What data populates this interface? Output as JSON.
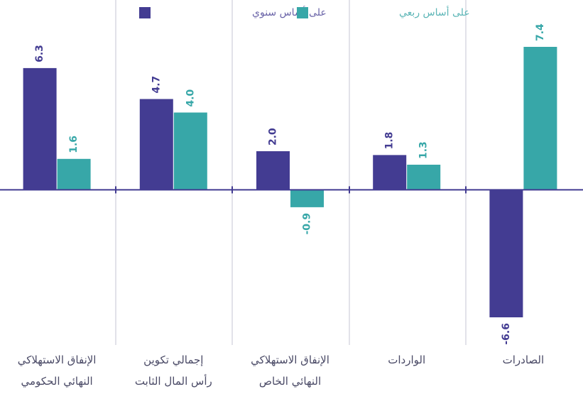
{
  "chart_data": {
    "type": "bar",
    "categories": [
      [
        "الإنفاق الاستهلاكي",
        "النهائي الحكومي"
      ],
      [
        "إجمالي تكوين",
        "رأس المال الثابت"
      ],
      [
        "الإنفاق الاستهلاكي",
        "النهائي الخاص"
      ],
      [
        "الواردات"
      ],
      [
        "الصادرات"
      ]
    ],
    "series": [
      {
        "name": "على أساس سنوي",
        "color": "#433c92",
        "values": [
          6.3,
          4.7,
          2.0,
          1.8,
          -6.6
        ],
        "labels": [
          "6.3",
          "4.7",
          "2.0",
          "1.8",
          "-6.6"
        ]
      },
      {
        "name": "على أساس ربعي",
        "color": "#37a7a8",
        "values": [
          1.6,
          4.0,
          -0.9,
          1.3,
          7.4
        ],
        "labels": [
          "1.6",
          "4.0",
          "-0.9",
          "1.3",
          "7.4"
        ]
      }
    ],
    "ylim": [
      -6.6,
      7.4
    ],
    "title": "",
    "xlabel": "",
    "ylabel": "",
    "grid": false,
    "legend": "top-center",
    "axis_color": "#433c92",
    "separator_color": "#d8d8e2",
    "label_color": "#4a4a66"
  }
}
